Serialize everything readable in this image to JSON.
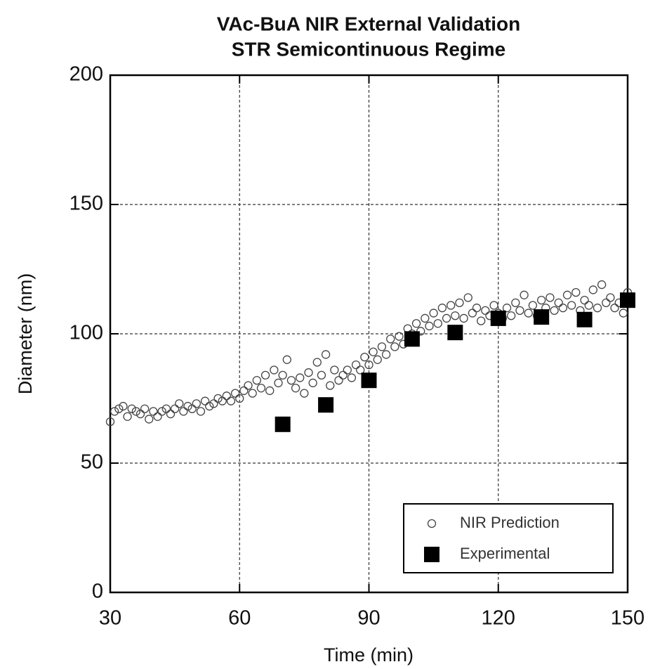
{
  "chart_data": {
    "type": "scatter",
    "title": "VAc-BuA NIR External Validation",
    "subtitle": "STR Semicontinuous Regime",
    "x_label": "Time (min)",
    "y_label": "Diameter (nm)",
    "xlim": [
      30,
      150
    ],
    "xticks": [
      30,
      60,
      90,
      120,
      150
    ],
    "ylim": [
      0,
      200
    ],
    "yticks": [
      0,
      50,
      100,
      150,
      200
    ],
    "grid": true,
    "legend": "lower right",
    "series": [
      {
        "name": "NIR Prediction",
        "color": "#444444",
        "marker": "open-circle",
        "x": [
          30,
          31,
          32,
          33,
          34,
          35,
          36,
          37,
          38,
          39,
          40,
          41,
          42,
          43,
          44,
          45,
          46,
          47,
          48,
          49,
          50,
          51,
          52,
          53,
          54,
          55,
          56,
          57,
          58,
          59,
          60,
          61,
          62,
          63,
          64,
          65,
          66,
          67,
          68,
          69,
          70,
          71,
          72,
          73,
          74,
          75,
          76,
          77,
          78,
          79,
          80,
          81,
          82,
          83,
          84,
          85,
          86,
          87,
          88,
          89,
          90,
          91,
          92,
          93,
          94,
          95,
          96,
          97,
          98,
          99,
          100,
          101,
          102,
          103,
          104,
          105,
          106,
          107,
          108,
          109,
          110,
          111,
          112,
          113,
          114,
          115,
          116,
          117,
          118,
          119,
          120,
          121,
          122,
          123,
          124,
          125,
          126,
          127,
          128,
          129,
          130,
          131,
          132,
          133,
          134,
          135,
          136,
          137,
          138,
          139,
          140,
          141,
          142,
          143,
          144,
          145,
          146,
          147,
          148,
          149,
          150
        ],
        "values": [
          66,
          70,
          71,
          72,
          68,
          71,
          70,
          69,
          71,
          67,
          70,
          68,
          70,
          71,
          69,
          71,
          73,
          70,
          72,
          71,
          73,
          70,
          74,
          72,
          73,
          75,
          74,
          76,
          74,
          77,
          75,
          78,
          80,
          77,
          82,
          79,
          84,
          78,
          86,
          81,
          84,
          90,
          82,
          79,
          83,
          77,
          85,
          81,
          89,
          84,
          92,
          80,
          86,
          82,
          84,
          86,
          83,
          88,
          86,
          91,
          88,
          93,
          90,
          95,
          92,
          98,
          95,
          99,
          96,
          102,
          100,
          104,
          101,
          106,
          103,
          108,
          104,
          110,
          106,
          111,
          107,
          112,
          106,
          114,
          108,
          110,
          105,
          109,
          107,
          111,
          108,
          106,
          110,
          107,
          112,
          109,
          115,
          108,
          111,
          107,
          113,
          110,
          114,
          109,
          112,
          110,
          115,
          111,
          116,
          109,
          113,
          111,
          117,
          110,
          119,
          112,
          114,
          110,
          112,
          108,
          116
        ]
      },
      {
        "name": "Experimental",
        "color": "#000000",
        "marker": "filled-square",
        "x": [
          70,
          80,
          90,
          100,
          110,
          120,
          130,
          140,
          150
        ],
        "values": [
          65,
          72.5,
          82,
          98,
          100.5,
          106,
          106.5,
          105.5,
          113
        ]
      }
    ]
  }
}
